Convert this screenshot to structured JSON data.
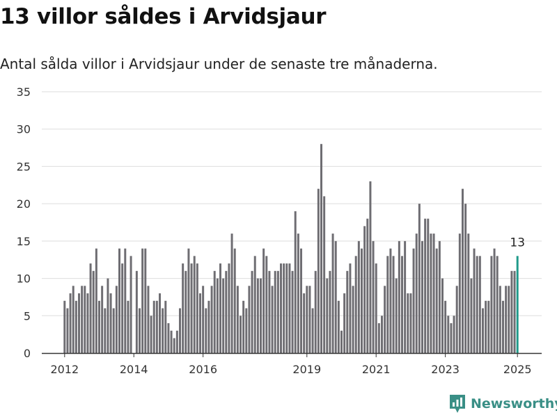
{
  "header": {
    "title": "13 villor såldes i Arvidsjaur",
    "subtitle": "Antal sålda villor i Arvidsjaur under de senaste tre månaderna."
  },
  "brand": {
    "name": "Newsworthy",
    "icon": "newsworthy-logo-icon",
    "color": "#3a8f86"
  },
  "chart_data": {
    "type": "bar",
    "title": "13 villor såldes i Arvidsjaur",
    "subtitle": "Antal sålda villor i Arvidsjaur under de senaste tre månaderna.",
    "xlabel": "",
    "ylabel": "",
    "ylim": [
      0,
      35
    ],
    "yticks": [
      0,
      5,
      10,
      15,
      20,
      25,
      30,
      35
    ],
    "xticks": [
      "2012",
      "2014",
      "2016",
      "2019",
      "2021",
      "2023",
      "2025"
    ],
    "grid": true,
    "bar_color": "#6e6d72",
    "highlight_color": "#1f9a8a",
    "highlight_label": "13",
    "values": [
      7,
      6,
      8,
      9,
      7,
      8,
      9,
      9,
      8,
      12,
      11,
      14,
      7,
      9,
      6,
      10,
      8,
      6,
      9,
      14,
      12,
      14,
      7,
      13,
      0,
      11,
      6,
      14,
      14,
      9,
      5,
      7,
      7,
      8,
      6,
      7,
      4,
      3,
      2,
      3,
      6,
      12,
      11,
      14,
      12,
      13,
      12,
      8,
      9,
      6,
      7,
      9,
      11,
      10,
      12,
      10,
      11,
      12,
      16,
      14,
      9,
      5,
      7,
      6,
      9,
      11,
      13,
      10,
      10,
      14,
      13,
      11,
      9,
      11,
      11,
      12,
      12,
      12,
      12,
      11,
      19,
      16,
      14,
      8,
      9,
      9,
      6,
      11,
      22,
      28,
      21,
      10,
      11,
      16,
      15,
      7,
      3,
      8,
      11,
      12,
      9,
      13,
      15,
      14,
      17,
      18,
      23,
      15,
      12,
      4,
      5,
      9,
      13,
      14,
      13,
      10,
      15,
      13,
      15,
      8,
      8,
      14,
      16,
      20,
      15,
      18,
      18,
      16,
      16,
      14,
      15,
      10,
      7,
      5,
      4,
      5,
      9,
      16,
      22,
      20,
      16,
      10,
      14,
      13,
      13,
      6,
      7,
      7,
      13,
      14,
      13,
      9,
      7,
      9,
      9,
      11,
      11,
      13
    ]
  }
}
